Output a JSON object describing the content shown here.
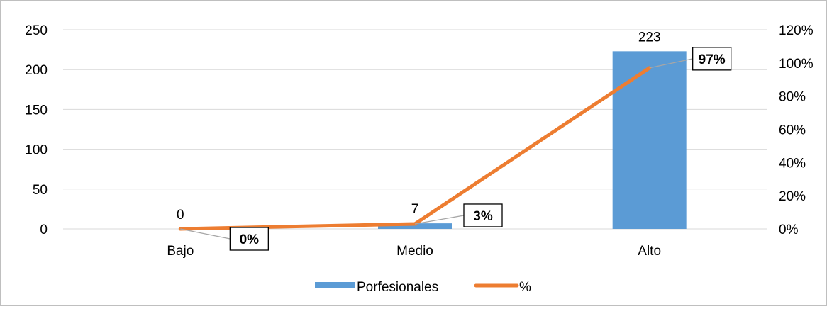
{
  "chart_data": {
    "type": "bar",
    "categories": [
      "Bajo",
      "Medio",
      "Alto"
    ],
    "series": [
      {
        "name": "Porfesionales",
        "type": "bar",
        "axis": "left",
        "values": [
          0,
          7,
          223
        ],
        "color": "#5b9bd5"
      },
      {
        "name": "%",
        "type": "line",
        "axis": "right",
        "values": [
          0,
          3,
          97
        ],
        "color": "#ed7d31"
      }
    ],
    "y_left": {
      "ticks": [
        "0",
        "50",
        "100",
        "150",
        "200",
        "250"
      ],
      "range": [
        0,
        250
      ]
    },
    "y_right": {
      "ticks": [
        "0%",
        "20%",
        "40%",
        "60%",
        "80%",
        "100%",
        "120%"
      ],
      "range": [
        0,
        120
      ]
    },
    "bar_labels": [
      "0",
      "7",
      "223"
    ],
    "line_labels": [
      "0%",
      "3%",
      "97%"
    ],
    "legend": {
      "position": "bottom",
      "items": [
        "Porfesionales",
        "%"
      ]
    },
    "grid": true
  }
}
